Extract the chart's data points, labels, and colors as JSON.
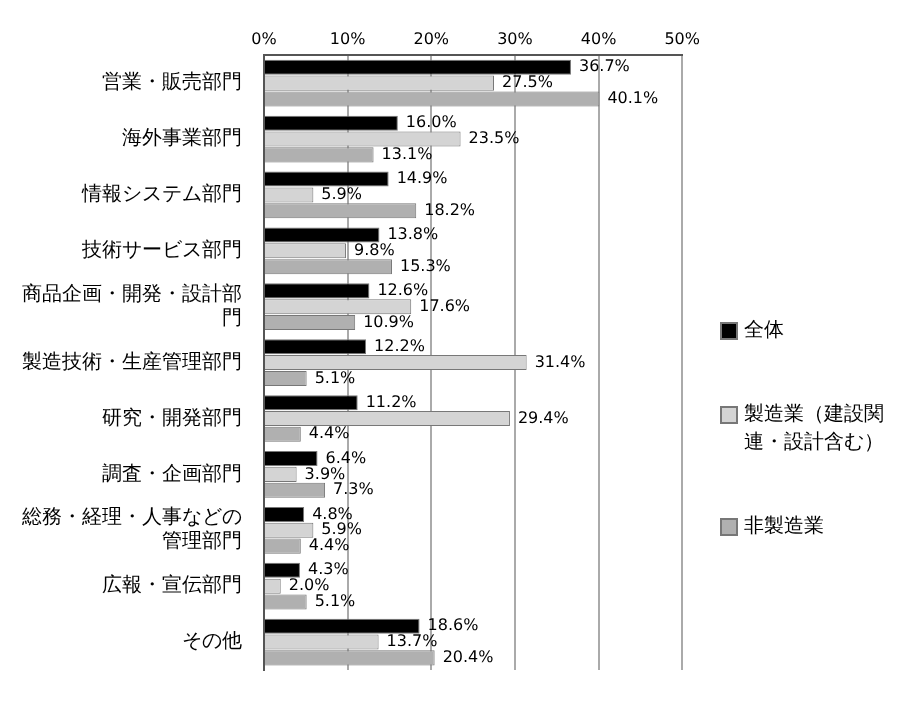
{
  "chart_data": {
    "type": "bar",
    "orientation": "horizontal",
    "categories": [
      "営業・販売部門",
      "海外事業部門",
      "情報システム部門",
      "技術サービス部門",
      "商品企画・開発・設計部門",
      "製造技術・生産管理部門",
      "研究・開発部門",
      "調査・企画部門",
      "総務・経理・人事などの管理部門",
      "広報・宣伝部門",
      "その他"
    ],
    "series": [
      {
        "name": "全体",
        "color": "#000000",
        "values": [
          36.7,
          16.0,
          14.9,
          13.8,
          12.6,
          12.2,
          11.2,
          6.4,
          4.8,
          4.3,
          18.6
        ],
        "value_labels": [
          "36.7%",
          "16.0%",
          "14.9%",
          "13.8%",
          "12.6%",
          "12.2%",
          "11.2%",
          "6.4%",
          "4.8%",
          "4.3%",
          "18.6%"
        ]
      },
      {
        "name": "製造業（建設関連・設計含む）",
        "color": "#d4d4d4",
        "values": [
          27.5,
          23.5,
          5.9,
          9.8,
          17.6,
          31.4,
          29.4,
          3.9,
          5.9,
          2.0,
          13.7
        ],
        "value_labels": [
          "27.5%",
          "23.5%",
          "5.9%",
          "9.8%",
          "17.6%",
          "31.4%",
          "29.4%",
          "3.9%",
          "5.9%",
          "2.0%",
          "13.7%"
        ]
      },
      {
        "name": "非製造業",
        "color": "#b0b0b0",
        "values": [
          40.1,
          13.1,
          18.2,
          15.3,
          10.9,
          5.1,
          4.4,
          7.3,
          4.4,
          5.1,
          20.4
        ],
        "value_labels": [
          "40.1%",
          "13.1%",
          "18.2%",
          "15.3%",
          "10.9%",
          "5.1%",
          "4.4%",
          "7.3%",
          "4.4%",
          "5.1%",
          "20.4%"
        ]
      }
    ],
    "xlim": [
      0,
      50
    ],
    "xticks": [
      {
        "value": 0,
        "label": "0%"
      },
      {
        "value": 10,
        "label": "10%"
      },
      {
        "value": 20,
        "label": "20%"
      },
      {
        "value": 30,
        "label": "30%"
      },
      {
        "value": 40,
        "label": "40%"
      },
      {
        "value": 50,
        "label": "50%"
      }
    ],
    "grid": "x",
    "legend": "right"
  }
}
